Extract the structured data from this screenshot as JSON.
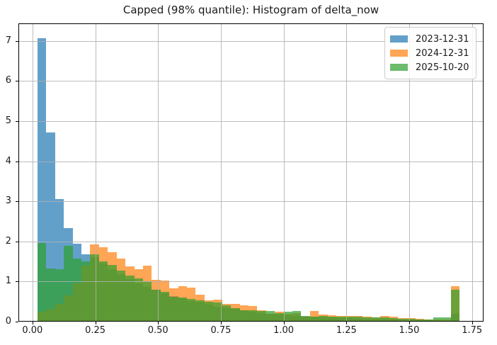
{
  "chart_data": {
    "type": "histogram",
    "title": "Capped (98% quantile): Histogram of delta_now",
    "xlabel": "",
    "ylabel": "",
    "grid": true,
    "legend_position": "upper right",
    "xlim": [
      -0.056,
      1.796
    ],
    "ylim": [
      0,
      7.44
    ],
    "bar_alpha": 0.7,
    "bins": {
      "start": 0.02,
      "width": 0.035,
      "count": 48
    },
    "xticks": {
      "values": [
        0,
        0.25,
        0.5,
        0.75,
        1.0,
        1.25,
        1.5,
        1.75
      ],
      "labels": [
        "0.00",
        "0.25",
        "0.50",
        "0.75",
        "1.00",
        "1.25",
        "1.50",
        "1.75"
      ]
    },
    "yticks": {
      "values": [
        0,
        1,
        2,
        3,
        4,
        5,
        6,
        7
      ],
      "labels": [
        "0",
        "1",
        "2",
        "3",
        "4",
        "5",
        "6",
        "7"
      ]
    },
    "series": [
      {
        "name": "2023-12-31",
        "color": "#1f77b4",
        "values": [
          7.07,
          4.72,
          3.05,
          2.33,
          1.95,
          1.68,
          1.6,
          1.45,
          1.3,
          1.18,
          1.06,
          0.96,
          0.87,
          0.79,
          0.71,
          0.64,
          0.58,
          0.52,
          0.47,
          0.42,
          0.38,
          0.34,
          0.31,
          0.28,
          0.25,
          0.22,
          0.2,
          0.18,
          0.16,
          0.14,
          0.13,
          0.12,
          0.11,
          0.1,
          0.09,
          0.08,
          0.07,
          0.06,
          0.06,
          0.05,
          0.05,
          0.04,
          0.04,
          0.03,
          0.03,
          0.03,
          0.02,
          0.2
        ]
      },
      {
        "name": "2024-12-31",
        "color": "#ff7f0e",
        "values": [
          0.24,
          0.32,
          0.45,
          0.65,
          0.95,
          1.4,
          1.92,
          1.85,
          1.74,
          1.57,
          1.37,
          1.31,
          1.4,
          1.04,
          1.02,
          0.83,
          0.89,
          0.84,
          0.68,
          0.53,
          0.54,
          0.45,
          0.44,
          0.41,
          0.39,
          0.28,
          0.2,
          0.25,
          0.2,
          0.22,
          0.13,
          0.27,
          0.18,
          0.16,
          0.14,
          0.14,
          0.14,
          0.13,
          0.1,
          0.14,
          0.12,
          0.08,
          0.08,
          0.07,
          0.06,
          0.05,
          0.05,
          0.88
        ]
      },
      {
        "name": "2025-10-20",
        "color": "#2ca02c",
        "values": [
          1.97,
          1.33,
          1.3,
          1.9,
          1.58,
          1.5,
          1.68,
          1.51,
          1.42,
          1.28,
          1.15,
          1.08,
          1.0,
          0.8,
          0.74,
          0.62,
          0.6,
          0.56,
          0.53,
          0.5,
          0.48,
          0.4,
          0.33,
          0.28,
          0.28,
          0.27,
          0.26,
          0.22,
          0.24,
          0.26,
          0.14,
          0.13,
          0.14,
          0.13,
          0.12,
          0.12,
          0.12,
          0.11,
          0.1,
          0.1,
          0.09,
          0.07,
          0.07,
          0.06,
          0.06,
          0.1,
          0.1,
          0.79
        ]
      }
    ],
    "grid_color": "#b0b0b0",
    "axis_color": "#000000",
    "text_color": "#1a1a1a"
  }
}
